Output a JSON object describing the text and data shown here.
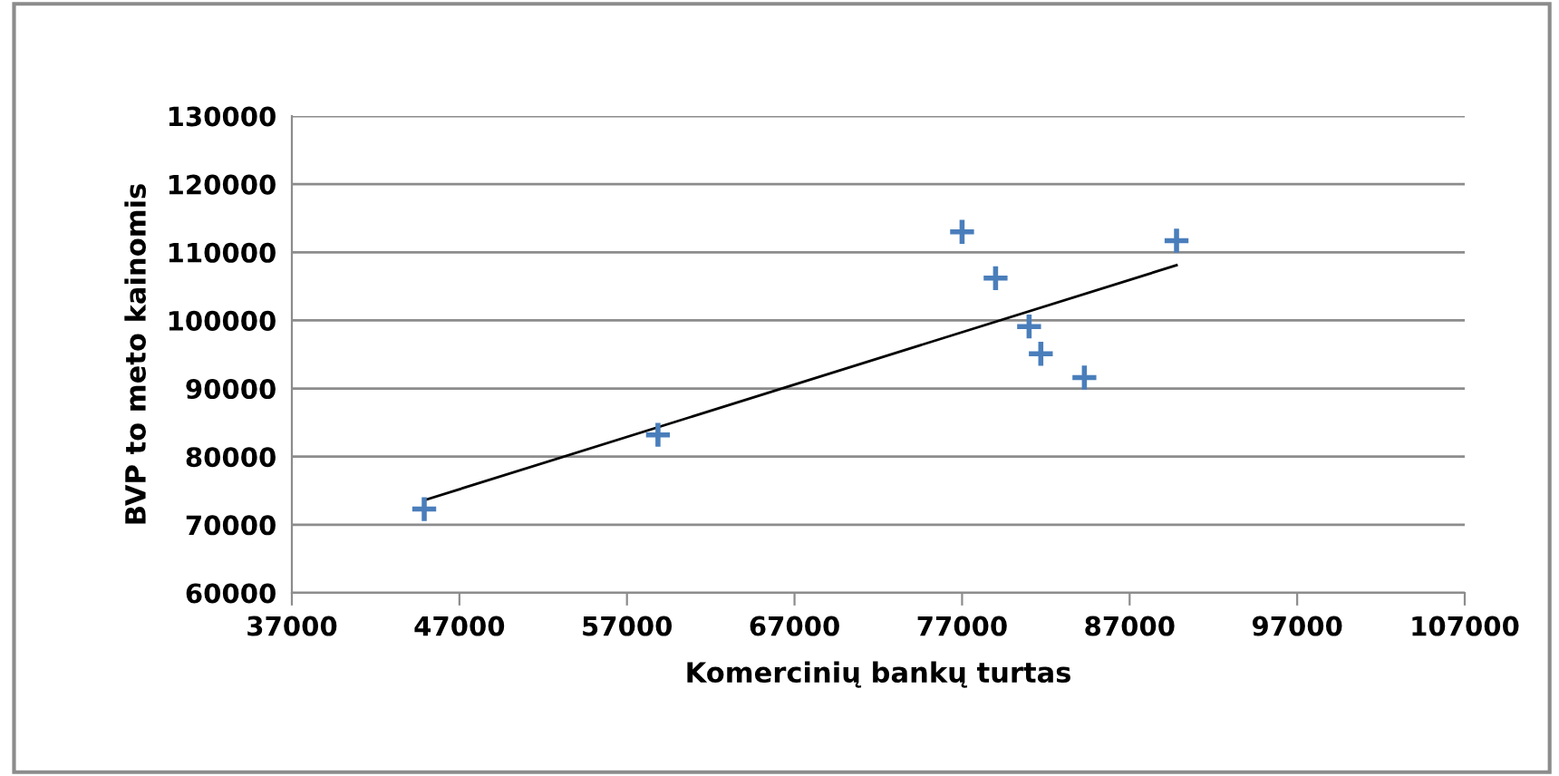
{
  "chart_data": {
    "type": "scatter",
    "xlabel": "Komercinių bankų turtas",
    "ylabel": "BVP to meto kainomis",
    "series": [
      {
        "type": "scatter",
        "color": "#4a7ebb",
        "marker": "cross",
        "x": [
          44900,
          58850,
          77000,
          79000,
          81000,
          81700,
          84300,
          89800
        ],
        "values": [
          72300,
          83200,
          113000,
          106200,
          99100,
          95100,
          91600,
          111700
        ]
      },
      {
        "type": "line",
        "color": "#000000",
        "marker": "none",
        "x": [
          44900,
          89800
        ],
        "values": [
          73600,
          108100
        ]
      }
    ],
    "xlim": [
      37000,
      107000
    ],
    "ylim": [
      60000,
      130000
    ],
    "xticks": [
      37000,
      47000,
      57000,
      67000,
      77000,
      87000,
      97000,
      107000
    ],
    "yticks": [
      60000,
      70000,
      80000,
      90000,
      100000,
      110000,
      120000,
      130000
    ],
    "grid": "y"
  }
}
